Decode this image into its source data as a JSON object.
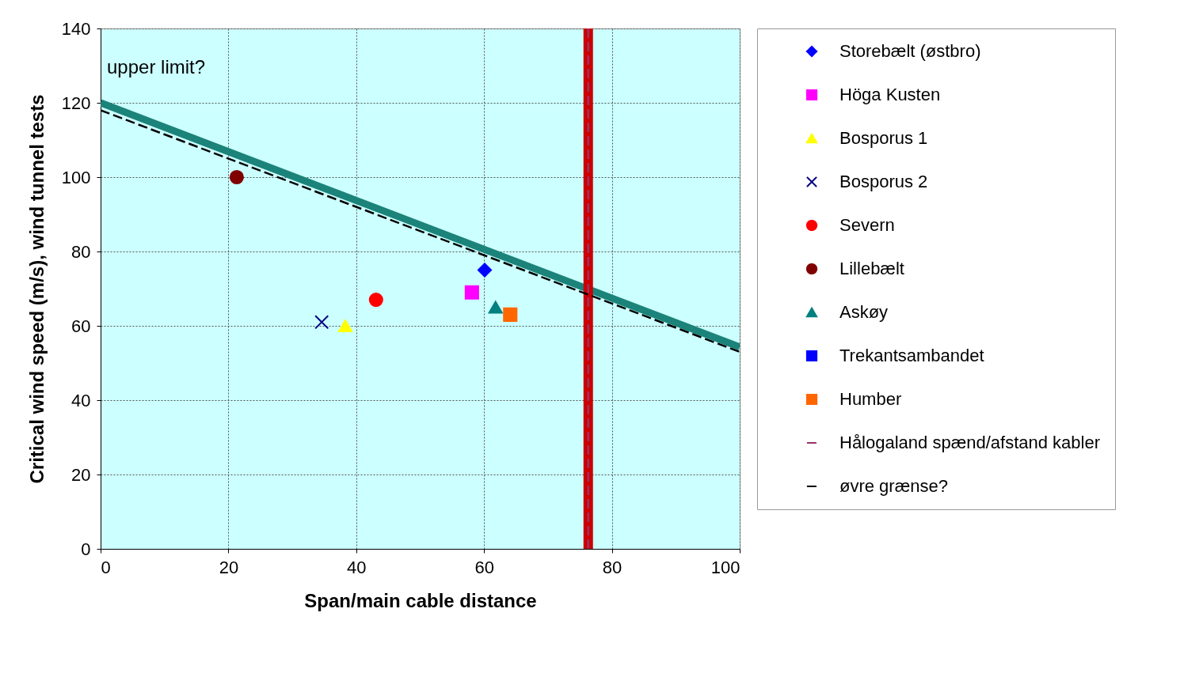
{
  "chart_data": {
    "type": "scatter",
    "xlabel": "Span/main cable distance",
    "ylabel": "Critical wind speed (m/s), wind tunnel tests",
    "xlim": [
      0,
      100
    ],
    "xticks": [
      0,
      20,
      40,
      60,
      80,
      100
    ],
    "ylim": [
      0,
      140
    ],
    "yticks": [
      0,
      20,
      40,
      60,
      80,
      100,
      120,
      140
    ],
    "grid": true,
    "legend": "right",
    "annotations": [
      "upper limit?"
    ],
    "ref_lines": [
      {
        "axis": "x",
        "value": 76.3,
        "color": "#cc0000"
      }
    ],
    "series": [
      {
        "type": "line",
        "color": "#1b8379",
        "x": [
          0,
          100
        ],
        "values": [
          120,
          54.3
        ],
        "line_style": "solid"
      },
      {
        "name": "Storebælt (østbro)",
        "color": "#0000ff",
        "marker": "diamond",
        "x": [
          60.1
        ],
        "values": [
          75
        ]
      },
      {
        "name": "Höga Kusten",
        "color": "#ff00ff",
        "marker": "square",
        "x": [
          58.1
        ],
        "values": [
          69
        ]
      },
      {
        "name": "Bosporus 1",
        "color": "#ffff00",
        "marker": "triangle",
        "x": [
          38.3
        ],
        "values": [
          60
        ]
      },
      {
        "name": "Bosporus 2",
        "color": "#000080",
        "marker": "cross",
        "x": [
          34.6
        ],
        "values": [
          61
        ]
      },
      {
        "name": "Severn",
        "color": "#ff0000",
        "marker": "circle",
        "x": [
          43.1
        ],
        "values": [
          67
        ]
      },
      {
        "name": "Lillebælt",
        "color": "#800000",
        "marker": "circle",
        "x": [
          21.3
        ],
        "values": [
          100
        ]
      },
      {
        "name": "Askøy",
        "color": "#008080",
        "marker": "triangle",
        "x": [
          61.8
        ],
        "values": [
          65
        ]
      },
      {
        "name": "Trekantsambandet",
        "color": "#0000ff",
        "marker": "square",
        "x": [
          null
        ],
        "values": [
          null
        ]
      },
      {
        "name": "Humber",
        "color": "#ff6600",
        "marker": "square",
        "x": [
          64.1
        ],
        "values": [
          63
        ]
      },
      {
        "name": "Hålogaland spænd/afstand kabler",
        "type": "line",
        "color": "#993366",
        "marker": "none",
        "line_style": "dashed",
        "x": [
          76.3,
          76.3
        ],
        "values": [
          0,
          140
        ]
      },
      {
        "name": "øvre grænse?",
        "type": "line",
        "color": "#000000",
        "marker": "none",
        "line_style": "dashed",
        "x": [
          0,
          100
        ],
        "values": [
          118,
          53
        ]
      }
    ]
  }
}
